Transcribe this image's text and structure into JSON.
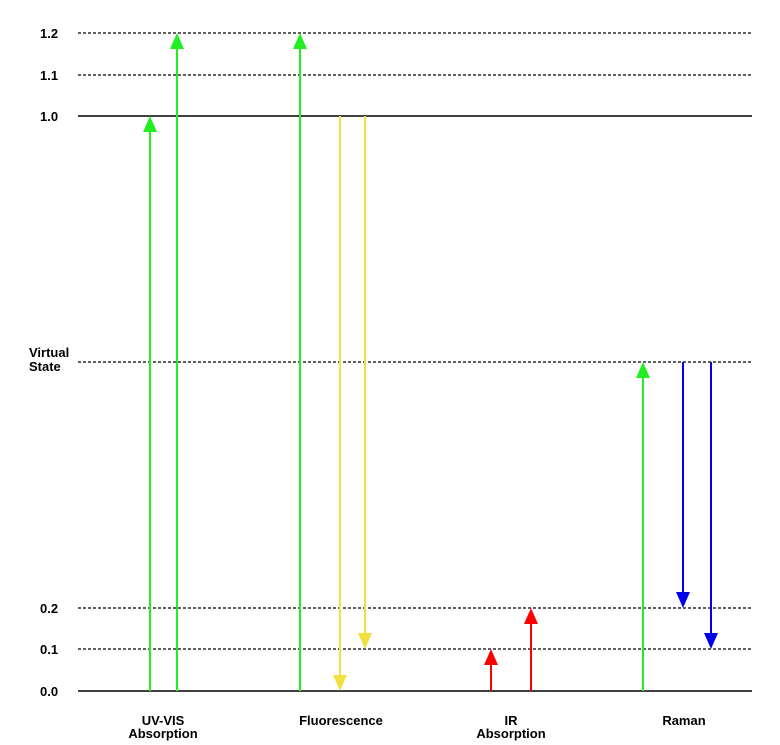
{
  "levels": [
    {
      "value": 1.2,
      "label": "1.2",
      "style": "dashed"
    },
    {
      "value": 1.1,
      "label": "1.1",
      "style": "dashed"
    },
    {
      "value": 1.0,
      "label": "1.0",
      "style": "solid"
    },
    {
      "value": "virtual",
      "label_lines": [
        "Virtual",
        "State"
      ],
      "style": "dashed"
    },
    {
      "value": 0.2,
      "label": "0.2",
      "style": "dashed"
    },
    {
      "value": 0.1,
      "label": "0.1",
      "style": "dashed"
    },
    {
      "value": 0.0,
      "label": "0.0",
      "style": "solid"
    }
  ],
  "categories": [
    {
      "key": "uvvis",
      "lines": [
        "UV-VIS",
        "Absorption"
      ]
    },
    {
      "key": "fluor",
      "lines": [
        "Fluorescence"
      ]
    },
    {
      "key": "ir",
      "lines": [
        "IR",
        "Absorption"
      ]
    },
    {
      "key": "raman",
      "lines": [
        "Raman"
      ]
    }
  ],
  "transitions": [
    {
      "category": "uvvis",
      "from": 0.0,
      "to": 1.0,
      "color": "#22ee22",
      "direction": "up"
    },
    {
      "category": "uvvis",
      "from": 0.0,
      "to": 1.2,
      "color": "#22ee22",
      "direction": "up"
    },
    {
      "category": "fluor",
      "from": 0.0,
      "to": 1.2,
      "color": "#22ee22",
      "direction": "up"
    },
    {
      "category": "fluor",
      "from": 1.0,
      "to": 0.0,
      "color": "#f2e040",
      "direction": "down"
    },
    {
      "category": "fluor",
      "from": 1.0,
      "to": 0.1,
      "color": "#f2e040",
      "direction": "down"
    },
    {
      "category": "ir",
      "from": 0.0,
      "to": 0.1,
      "color": "#ff0000",
      "direction": "up"
    },
    {
      "category": "ir",
      "from": 0.0,
      "to": 0.2,
      "color": "#ff0000",
      "direction": "up"
    },
    {
      "category": "raman",
      "from": 0.0,
      "to": "virtual",
      "color": "#22ee22",
      "direction": "up"
    },
    {
      "category": "raman",
      "from": "virtual",
      "to": 0.2,
      "color": "#0000ee",
      "direction": "down"
    },
    {
      "category": "raman",
      "from": "virtual",
      "to": 0.1,
      "color": "#0000ee",
      "direction": "down"
    }
  ]
}
